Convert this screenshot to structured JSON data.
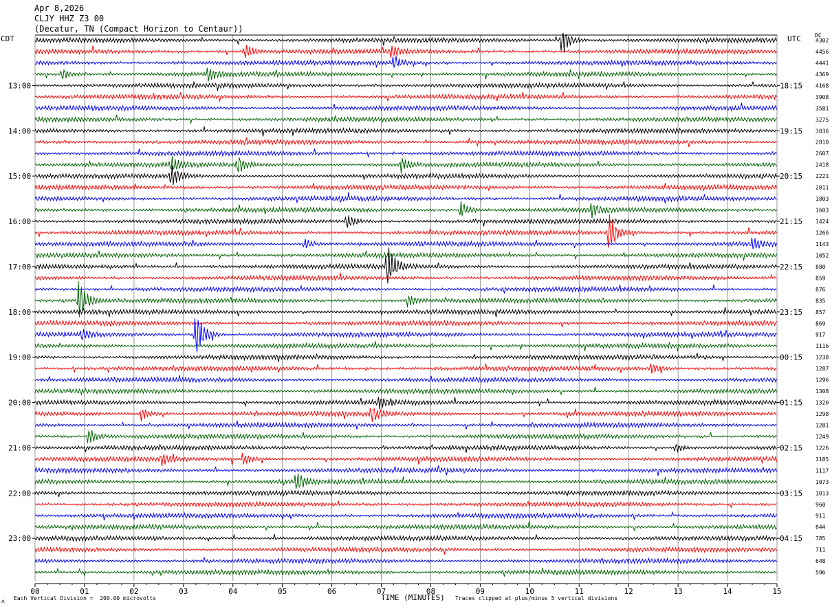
{
  "header": {
    "date": "Apr 8,2026",
    "station": "CLJY HHZ Z3 00",
    "location": "(Decatur, TN (Compact Horizon to Centaur))"
  },
  "left_tz": "CDT",
  "right_tz": "UTC",
  "dc_label": "DC",
  "footer": {
    "scale_note": "Each Vertical Division =  200.00 microvolts",
    "clip_note": "Traces clipped at plus/minus 5 vertical divisions",
    "corner_mark": "ʌ"
  },
  "trace_colors": [
    "#000000",
    "#ff0000",
    "#0000ff",
    "#006400"
  ],
  "chart_data": {
    "type": "line",
    "xlabel": "TIME (MINUTES)",
    "xlim": [
      0,
      15
    ],
    "x_ticks": [
      "00",
      "01",
      "02",
      "03",
      "04",
      "05",
      "06",
      "07",
      "08",
      "09",
      "10",
      "11",
      "12",
      "13",
      "14",
      "15"
    ],
    "grid": true,
    "y_ticks_left": [
      {
        "row": 4,
        "label": "13:00"
      },
      {
        "row": 8,
        "label": "14:00"
      },
      {
        "row": 12,
        "label": "15:00"
      },
      {
        "row": 16,
        "label": "16:00"
      },
      {
        "row": 20,
        "label": "17:00"
      },
      {
        "row": 24,
        "label": "18:00"
      },
      {
        "row": 28,
        "label": "19:00"
      },
      {
        "row": 32,
        "label": "20:00"
      },
      {
        "row": 36,
        "label": "21:00"
      },
      {
        "row": 40,
        "label": "22:00"
      },
      {
        "row": 44,
        "label": "23:00"
      }
    ],
    "y_ticks_right": [
      {
        "row": 4,
        "label": "18:15"
      },
      {
        "row": 8,
        "label": "19:15"
      },
      {
        "row": 12,
        "label": "20:15"
      },
      {
        "row": 16,
        "label": "21:15"
      },
      {
        "row": 20,
        "label": "22:15"
      },
      {
        "row": 24,
        "label": "23:15"
      },
      {
        "row": 28,
        "label": "00:15"
      },
      {
        "row": 32,
        "label": "01:15"
      },
      {
        "row": 36,
        "label": "02:15"
      },
      {
        "row": 40,
        "label": "03:15"
      },
      {
        "row": 44,
        "label": "04:15"
      }
    ],
    "dc_offsets": [
      "4302",
      "4456",
      "4441",
      "4369",
      "4168",
      "3908",
      "3581",
      "3275",
      "3036",
      "2810",
      "2607",
      "2418",
      "2221",
      "2011",
      "1803",
      "1603",
      "1424",
      "1266",
      "1143",
      "1052",
      "880",
      "859",
      "876",
      "835",
      "857",
      "869",
      "917",
      "1116",
      "1238",
      "1287",
      "1296",
      "1308",
      "1320",
      "1298",
      "1281",
      "1249",
      "1226",
      "1185",
      "1117",
      "1073",
      "1013",
      "960",
      "911",
      "844",
      "785",
      "711",
      "648",
      "596"
    ],
    "events": [
      {
        "row": 0,
        "minute": 10.65,
        "amp": 2.2
      },
      {
        "row": 1,
        "minute": 4.25,
        "amp": 1.0
      },
      {
        "row": 1,
        "minute": 7.2,
        "amp": 0.8
      },
      {
        "row": 2,
        "minute": 7.25,
        "amp": 1.0
      },
      {
        "row": 3,
        "minute": 3.5,
        "amp": 1.0
      },
      {
        "row": 3,
        "minute": 0.55,
        "amp": 0.8
      },
      {
        "row": 11,
        "minute": 2.75,
        "amp": 1.1
      },
      {
        "row": 11,
        "minute": 4.1,
        "amp": 1.2
      },
      {
        "row": 11,
        "minute": 7.4,
        "amp": 1.1
      },
      {
        "row": 12,
        "minute": 2.75,
        "amp": 1.6
      },
      {
        "row": 15,
        "minute": 8.6,
        "amp": 1.3
      },
      {
        "row": 15,
        "minute": 11.25,
        "amp": 1.0
      },
      {
        "row": 16,
        "minute": 6.3,
        "amp": 1.0
      },
      {
        "row": 17,
        "minute": 11.6,
        "amp": 2.8
      },
      {
        "row": 18,
        "minute": 5.45,
        "amp": 0.8
      },
      {
        "row": 18,
        "minute": 14.5,
        "amp": 0.8
      },
      {
        "row": 20,
        "minute": 7.12,
        "amp": 3.2
      },
      {
        "row": 23,
        "minute": 0.88,
        "amp": 3.0
      },
      {
        "row": 23,
        "minute": 7.55,
        "amp": 0.8
      },
      {
        "row": 26,
        "minute": 3.25,
        "amp": 3.5
      },
      {
        "row": 26,
        "minute": 0.95,
        "amp": 0.8
      },
      {
        "row": 29,
        "minute": 12.45,
        "amp": 0.7
      },
      {
        "row": 32,
        "minute": 6.95,
        "amp": 0.7
      },
      {
        "row": 33,
        "minute": 2.15,
        "amp": 1.0
      },
      {
        "row": 33,
        "minute": 6.8,
        "amp": 1.1
      },
      {
        "row": 35,
        "minute": 1.08,
        "amp": 1.2
      },
      {
        "row": 37,
        "minute": 2.55,
        "amp": 0.8
      },
      {
        "row": 37,
        "minute": 4.2,
        "amp": 0.9
      },
      {
        "row": 39,
        "minute": 5.28,
        "amp": 1.5
      },
      {
        "row": 36,
        "minute": 12.95,
        "amp": 0.7
      }
    ]
  }
}
